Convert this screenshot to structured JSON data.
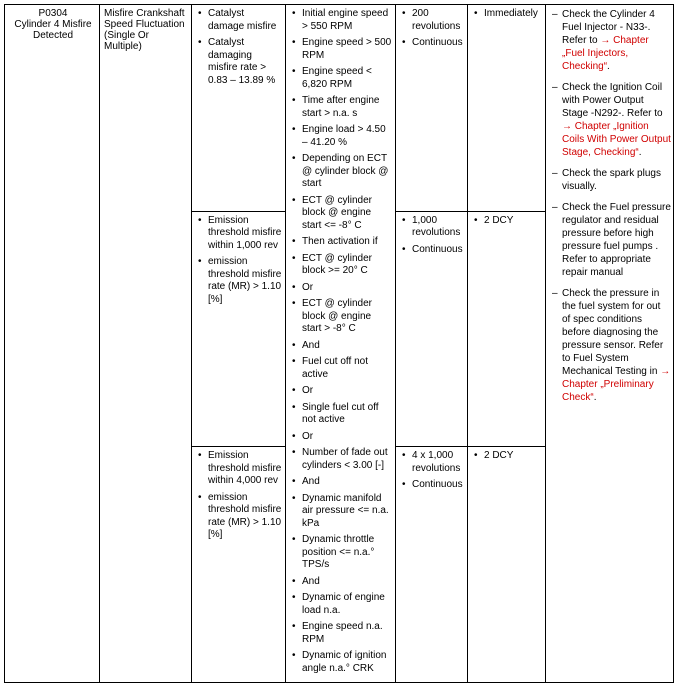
{
  "dtc": {
    "code": "P0304",
    "title": "Cylinder 4 Misfire Detected",
    "fault": "Misfire Crankshaft Speed Fluctuation (Single Or Multiple)",
    "rows": [
      {
        "threshold": [
          "Catalyst damage misfire",
          "Catalyst damaging misfire rate > 0.83 – 13.89 %"
        ],
        "revolutions": [
          "200 revolutions",
          "Continuous"
        ],
        "time": [
          "Immediately"
        ]
      },
      {
        "threshold": [
          "Emission threshold misfire within 1,000 rev",
          "emission threshold misfire rate (MR) > 1.10 [%]"
        ],
        "revolutions": [
          "1,000 revolutions",
          "Continuous"
        ],
        "time": [
          "2 DCY"
        ]
      },
      {
        "threshold": [
          "Emission threshold misfire within 4,000 rev",
          "emission threshold misfire rate (MR) > 1.10 [%]"
        ],
        "revolutions": [
          "4 x 1,000 revolutions",
          "Continuous"
        ],
        "time": [
          "2 DCY"
        ]
      }
    ],
    "conditions": [
      "Initial engine speed > 550 RPM",
      "Engine speed > 500 RPM",
      "Engine speed < 6,820 RPM",
      "Time after engine start > n.a. s",
      "Engine load > 4.50 – 41.20 %",
      "Depending on ECT @ cylinder block @ start",
      "ECT @ cylinder block @ engine start <= -8° C",
      "Then activation if",
      "ECT @ cylinder block >= 20° C",
      "Or",
      "ECT @ cylinder block @ engine start > -8° C",
      "And",
      "Fuel cut off not active",
      "Or",
      "Single fuel cut off not active",
      "Or",
      "Number of fade out cylinders < 3.00 [-]",
      "And",
      "Dynamic manifold air pressure <= n.a. kPa",
      "Dynamic throttle position <= n.a.° TPS/s",
      "And",
      "Dynamic of engine load n.a.",
      "Engine speed n.a. RPM",
      "Dynamic of ignition angle n.a.° CRK"
    ],
    "actions": [
      {
        "pre": "Check the Cylinder 4 Fuel Injector - N33-. Refer to ",
        "link": "→ Chapter „Fuel Injectors, Checking“",
        "post": "."
      },
      {
        "pre": "Check the Ignition Coil with Power Output Stage -N292-. Refer to ",
        "link": "→ Chapter „Ignition Coils With Power Output Stage, Checking“",
        "post": "."
      },
      {
        "pre": "Check the spark plugs visually.",
        "link": "",
        "post": ""
      },
      {
        "pre": "Check the Fuel pressure regulator and residual pressure before high pressure fuel pumps . Refer to appropriate repair manual",
        "link": "",
        "post": ""
      },
      {
        "pre": "Check the pressure in the fuel system for out of spec conditions before diagnosing the pressure sensor. Refer to Fuel System Mechanical Testing in ",
        "link": "→ Chapter „Preliminary Check“",
        "post": "."
      }
    ]
  }
}
